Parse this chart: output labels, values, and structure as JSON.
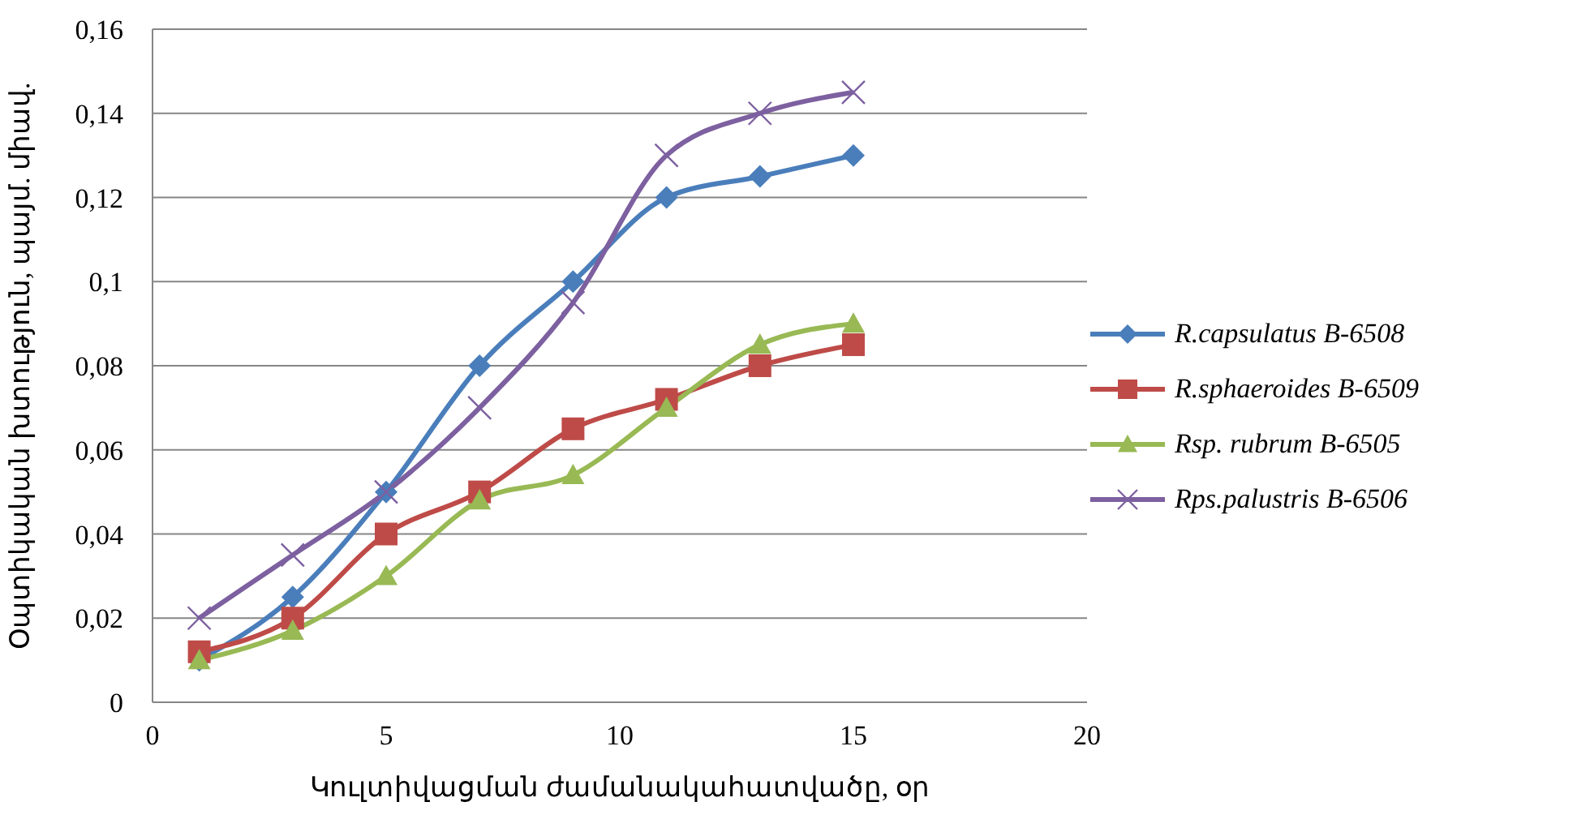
{
  "chart_data": {
    "type": "line",
    "xlabel": "Կուլտիվացման ժամանակահատվածը, օր",
    "ylabel": "Օպտիկական խտություն, պայմ. միավ.",
    "x": [
      1,
      3,
      5,
      7,
      9,
      11,
      13,
      15
    ],
    "series": [
      {
        "name": "R.capsulatus B-6508",
        "color": "#4a7ebb",
        "marker": "diamond",
        "values": [
          0.01,
          0.025,
          0.05,
          0.08,
          0.1,
          0.12,
          0.125,
          0.13
        ]
      },
      {
        "name": "R.sphaeroides B-6509",
        "color": "#be4b48",
        "marker": "square",
        "values": [
          0.012,
          0.02,
          0.04,
          0.05,
          0.065,
          0.072,
          0.08,
          0.085
        ]
      },
      {
        "name": "Rsp. rubrum B-6505",
        "color": "#98b954",
        "marker": "triangle",
        "values": [
          0.01,
          0.017,
          0.03,
          0.048,
          0.054,
          0.07,
          0.085,
          0.09
        ]
      },
      {
        "name": "Rps.palustris B-6506",
        "color": "#7d60a0",
        "marker": "cross",
        "values": [
          0.02,
          0.035,
          0.05,
          0.07,
          0.095,
          0.13,
          0.14,
          0.145
        ]
      }
    ],
    "xlim": [
      0,
      20
    ],
    "xticks": [
      0,
      5,
      10,
      15,
      20
    ],
    "ylim": [
      0,
      0.16
    ],
    "yticks": [
      0,
      {
        "value": 0.02,
        "label": "0,02"
      },
      {
        "value": 0.04,
        "label": "0,04"
      },
      {
        "value": 0.06,
        "label": "0,06"
      },
      {
        "value": 0.08,
        "label": "0,08"
      },
      {
        "value": 0.1,
        "label": "0,1"
      },
      {
        "value": 0.12,
        "label": "0,12"
      },
      {
        "value": 0.14,
        "label": "0,14"
      },
      {
        "value": 0.16,
        "label": "0,16"
      }
    ],
    "grid": "y",
    "legend": "right",
    "line_style": "solid"
  }
}
